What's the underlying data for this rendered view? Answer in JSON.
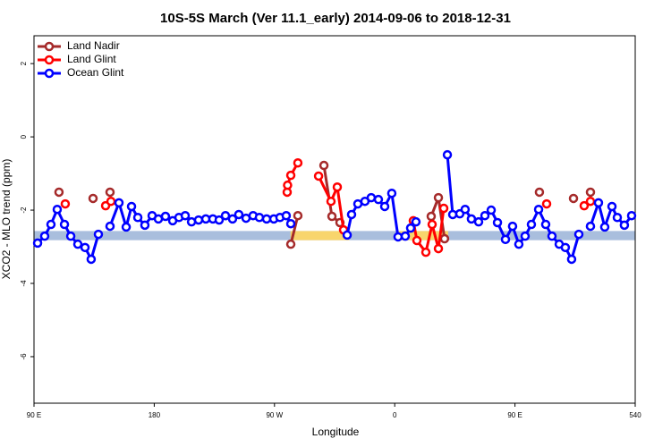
{
  "chart_data": {
    "type": "line",
    "title": "10S-5S March (Ver 11.1_early)   2014-09-06 to 2018-12-31",
    "x_label": "Longitude",
    "y_label": "XCO2 - MLO trend (ppm)",
    "xlim": [
      90,
      540
    ],
    "ylim": [
      -7.27,
      2.76
    ],
    "xticks": [
      {
        "value": 90,
        "label": "90 E"
      },
      180,
      {
        "value": 270,
        "label": "90 W"
      },
      {
        "value": 360,
        "label": "0"
      },
      {
        "value": 450,
        "label": "90 E"
      },
      540
    ],
    "yticks": [
      2,
      0,
      -2,
      -4,
      -6
    ],
    "legend": "top-left",
    "band": {
      "range": [
        -2.57,
        -2.82
      ],
      "color": "#a9bedd"
    },
    "highlights": {
      "xranges": [
        [
          282,
          326
        ],
        [
          362,
          400
        ]
      ],
      "color": "#f8d56c"
    },
    "series": [
      {
        "name": "Land Nadir",
        "color": "#a52a2a",
        "x": [
          108.7,
          null,
          134.2,
          null,
          146.9,
          null,
          282.2,
          287.5,
          null,
          307.0,
          313.0,
          319.0,
          null,
          387.3,
          392.7,
          397.3,
          null,
          468.3,
          null,
          493.8,
          null,
          506.5
        ],
        "values": [
          -1.51,
          null,
          -1.68,
          null,
          -1.51,
          null,
          -2.93,
          -2.15,
          null,
          -0.78,
          -2.17,
          -2.34,
          null,
          -2.17,
          -1.66,
          -2.78,
          null,
          -1.51,
          null,
          -1.68,
          null,
          -1.51
        ]
      },
      {
        "name": "Land Glint",
        "color": "#ff0000",
        "x": [
          113.4,
          null,
          143.6,
          147.6,
          null,
          279.5,
          279.8,
          282.2,
          287.5,
          null,
          303.0,
          312.3,
          317.0,
          321.7,
          null,
          373.9,
          376.6,
          383.3,
          388.0,
          392.7,
          396.7,
          null,
          473.7,
          null,
          501.8,
          506.5
        ],
        "values": [
          -1.83,
          null,
          -1.88,
          -1.76,
          null,
          -1.51,
          -1.32,
          -1.05,
          -0.71,
          null,
          -1.07,
          -1.76,
          -1.37,
          -2.54,
          null,
          -2.29,
          -2.83,
          -3.15,
          -2.39,
          -3.05,
          -1.95,
          null,
          -1.83,
          null,
          -1.88,
          -1.76
        ]
      },
      {
        "name": "Ocean Glint",
        "color": "#0000ff",
        "x": [
          92.7,
          98.0,
          102.7,
          107.4,
          112.8,
          117.5,
          122.8,
          128.2,
          132.8,
          138.2,
          null,
          146.9,
          153.6,
          159.0,
          163.0,
          167.7,
          173.0,
          178.4,
          183.1,
          188.4,
          193.8,
          198.5,
          203.2,
          207.9,
          213.2,
          218.6,
          223.9,
          228.6,
          233.3,
          238.6,
          243.3,
          248.7,
          254.0,
          258.7,
          264.1,
          269.5,
          274.1,
          278.8,
          282.2,
          null,
          324.4,
          327.7,
          332.4,
          337.7,
          342.4,
          347.8,
          352.5,
          357.8,
          362.5,
          367.9,
          371.9,
          375.9,
          null,
          399.4,
          403.4,
          408.7,
          412.7,
          417.4,
          422.8,
          427.5,
          432.2,
          436.9,
          442.9,
          448.2,
          452.9,
          457.6,
          462.3,
          467.7,
          473.0,
          477.7,
          483.1,
          487.7,
          492.4,
          497.8,
          null,
          506.5,
          512.5,
          517.2,
          522.6,
          526.6,
          531.9,
          537.3
        ],
        "values": [
          -2.9,
          -2.71,
          -2.39,
          -1.98,
          -2.39,
          -2.71,
          -2.93,
          -3.02,
          -3.34,
          -2.66,
          null,
          -2.44,
          -1.8,
          -2.46,
          -1.9,
          -2.2,
          -2.41,
          -2.15,
          -2.24,
          -2.17,
          -2.29,
          -2.2,
          -2.15,
          -2.32,
          -2.27,
          -2.24,
          -2.24,
          -2.27,
          -2.15,
          -2.24,
          -2.12,
          -2.22,
          -2.15,
          -2.2,
          -2.24,
          -2.24,
          -2.2,
          -2.15,
          -2.37,
          null,
          -2.68,
          -2.12,
          -1.83,
          -1.76,
          -1.66,
          -1.71,
          -1.9,
          -1.54,
          -2.73,
          -2.71,
          -2.49,
          -2.32,
          null,
          -0.49,
          -2.12,
          -2.1,
          -1.98,
          -2.24,
          -2.32,
          -2.15,
          -2.0,
          -2.34,
          -2.8,
          -2.44,
          -2.93,
          -2.71,
          -2.39,
          -1.98,
          -2.39,
          -2.71,
          -2.93,
          -3.02,
          -3.34,
          -2.66,
          null,
          -2.44,
          -1.8,
          -2.46,
          -1.9,
          -2.2,
          -2.41,
          -2.15
        ]
      }
    ]
  }
}
